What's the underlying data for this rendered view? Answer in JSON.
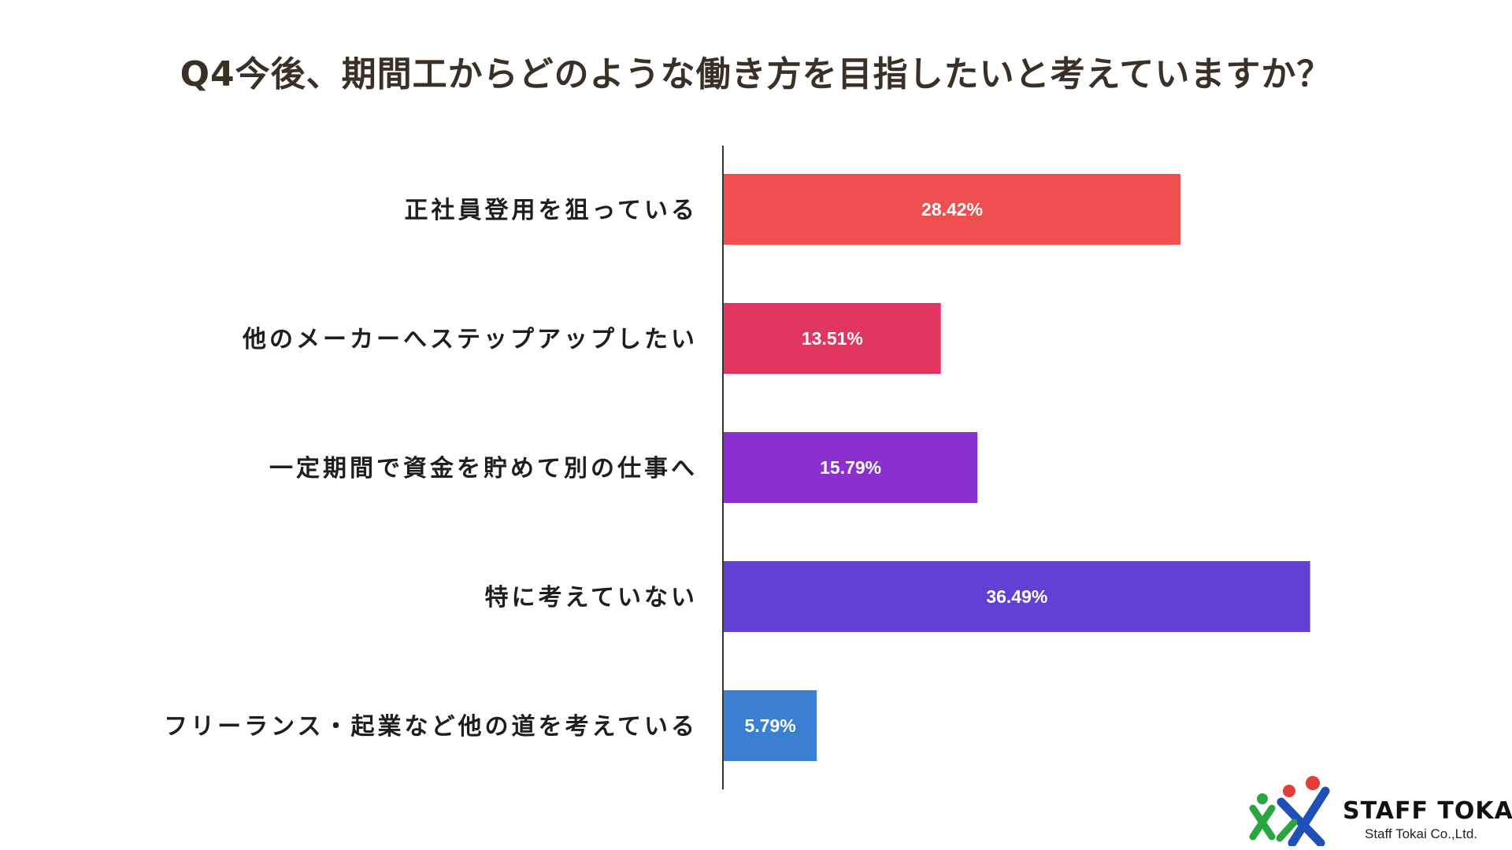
{
  "title": "Q4今後、期間工からどのような働き方を目指したいと考えていますか？",
  "chart_data": {
    "type": "bar",
    "orientation": "horizontal",
    "categories": [
      "正社員登用を狙っている",
      "他のメーカーへステップアップしたい",
      "一定期間で資金を貯めて別の仕事へ",
      "特に考えていない",
      "フリーランス・起業など他の道を考えている"
    ],
    "values": [
      28.42,
      13.51,
      15.79,
      36.49,
      5.79
    ],
    "value_labels": [
      "28.42%",
      "13.51%",
      "15.79%",
      "36.49%",
      "5.79%"
    ],
    "colors": [
      "#ef504f",
      "#e0365f",
      "#8a30cf",
      "#6240d3",
      "#3a7fd2"
    ],
    "xlim": [
      0,
      40
    ],
    "grid": false,
    "legend": "none"
  },
  "logo": {
    "name": "STAFF TOKAI",
    "sub": "Staff Tokai Co.,Ltd."
  }
}
